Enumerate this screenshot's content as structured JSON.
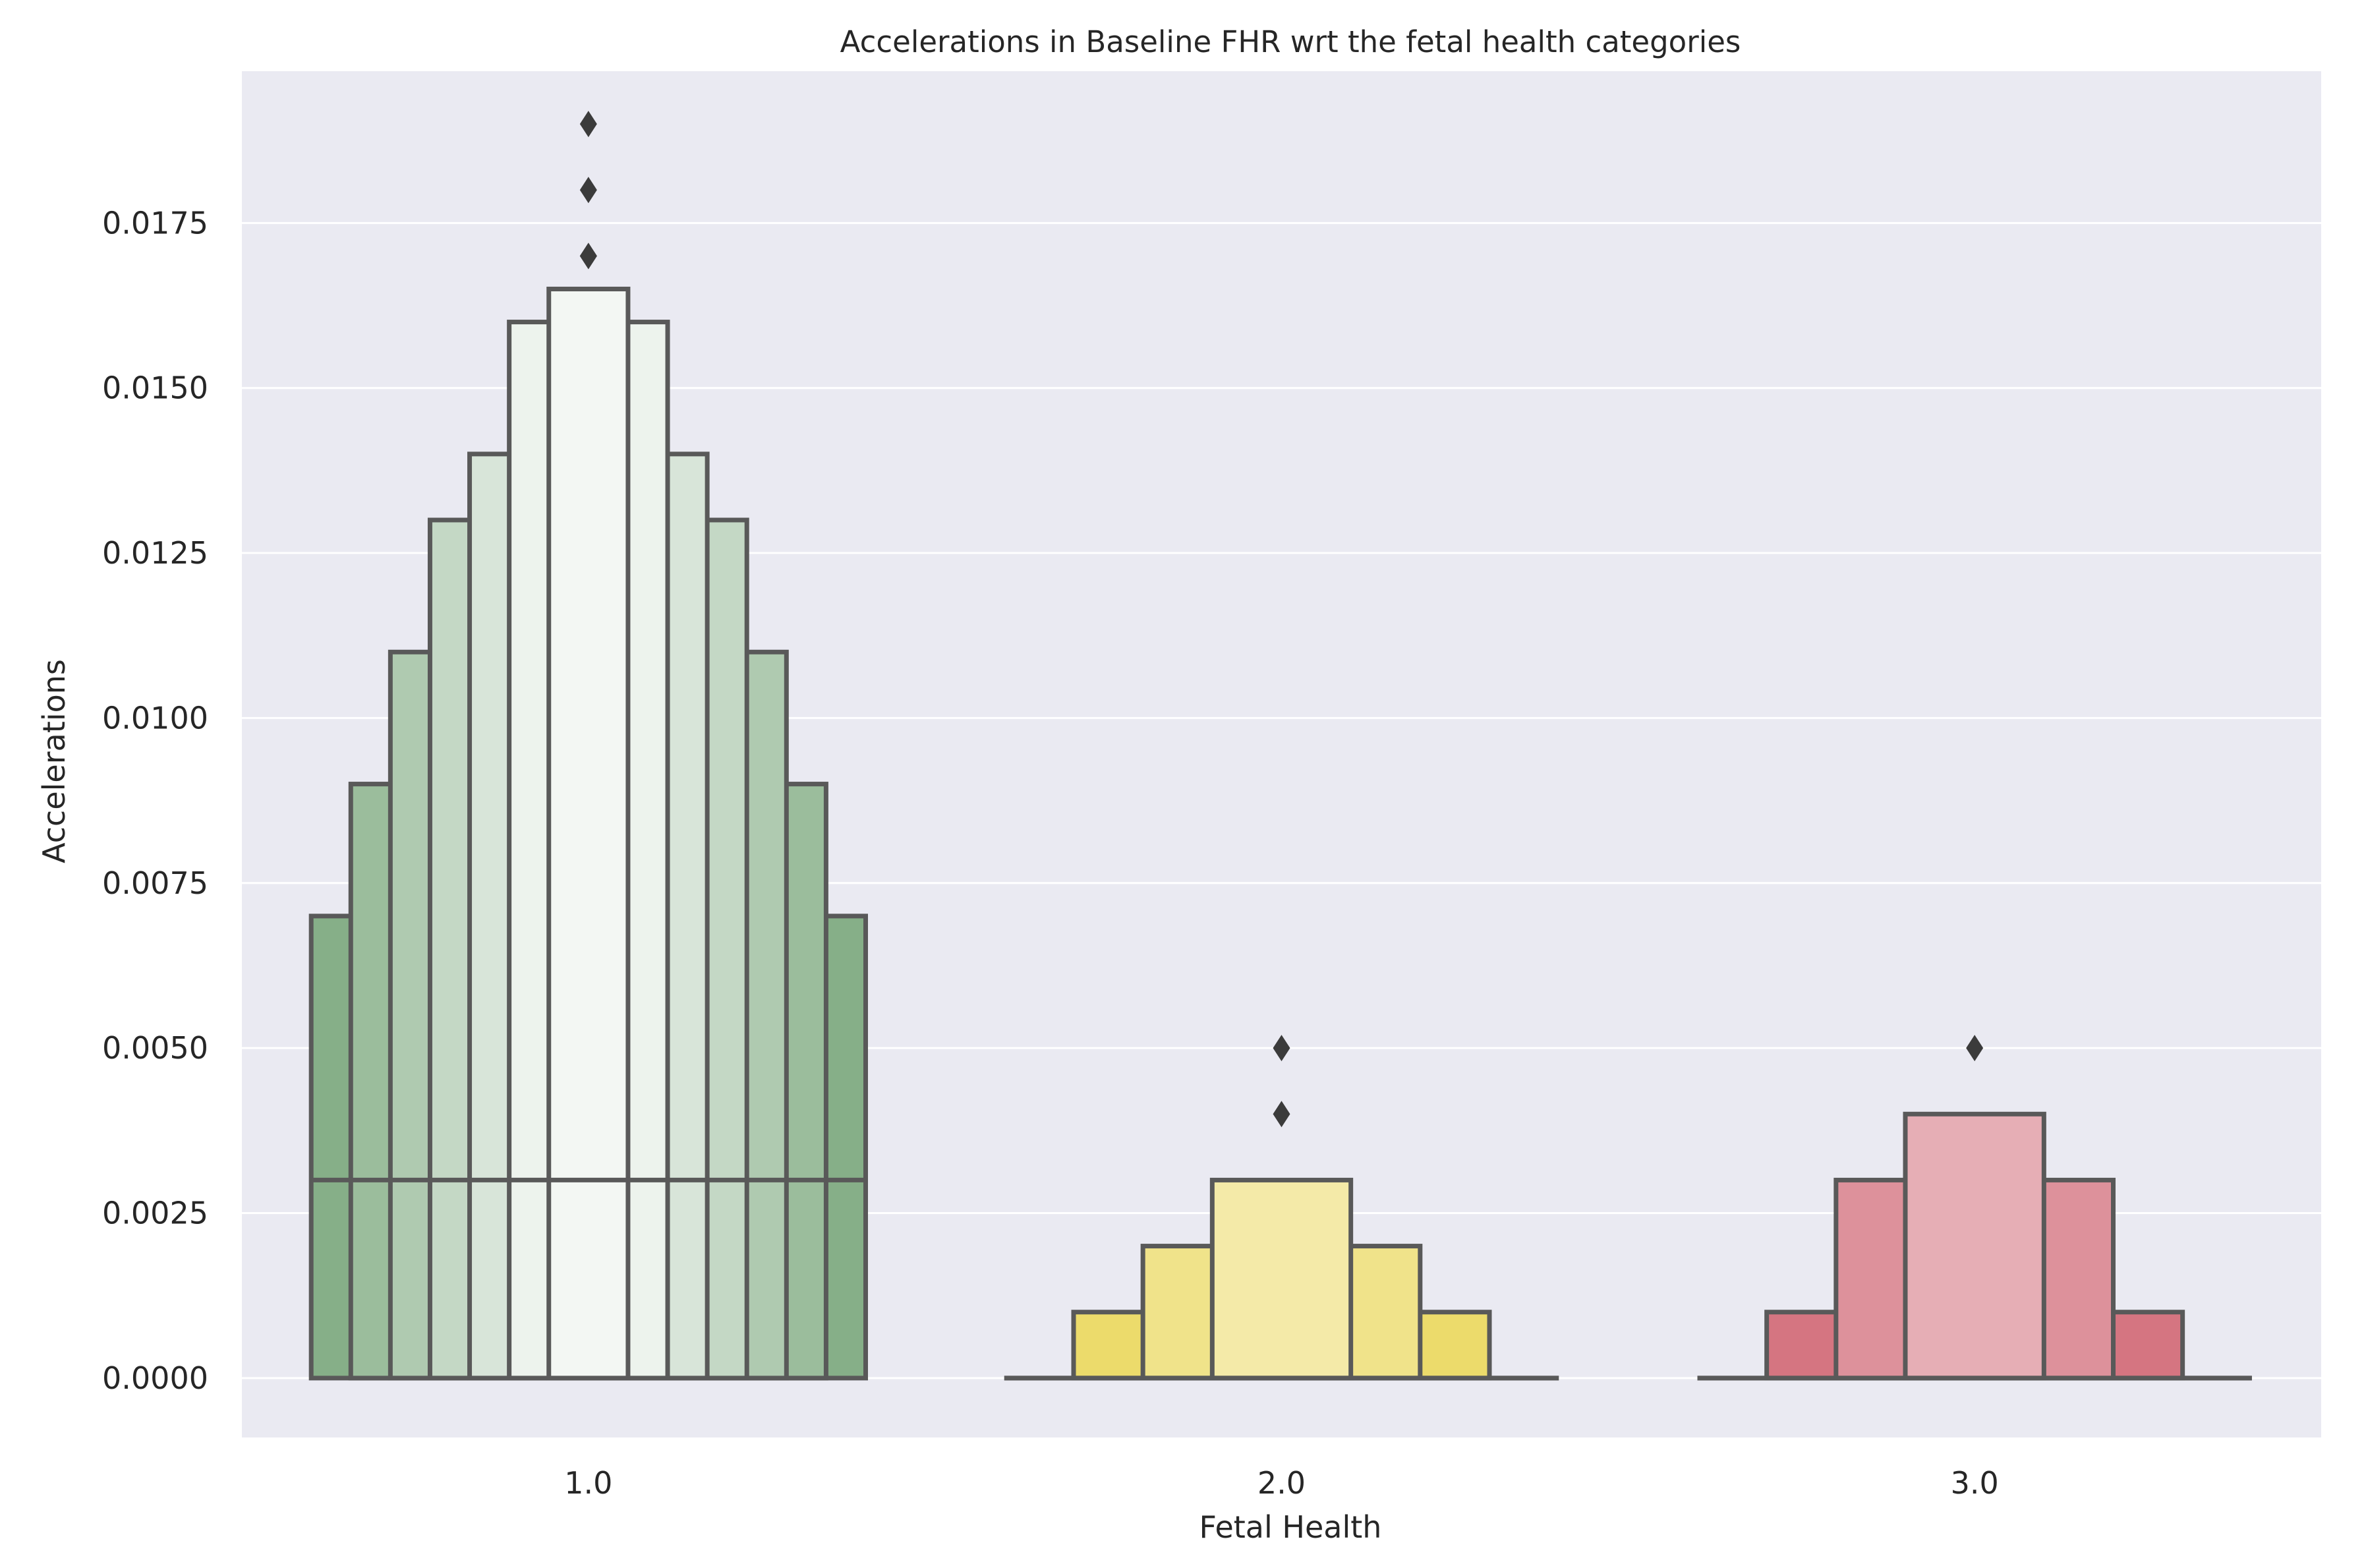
{
  "chart_data": {
    "type": "boxen",
    "title": "Accelerations in Baseline FHR wrt the fetal health categories",
    "xlabel": "Fetal Health",
    "ylabel": "Accelerations",
    "ylim": [
      -0.0009,
      0.0198
    ],
    "grid": true,
    "categories": [
      "1.0",
      "2.0",
      "3.0"
    ],
    "y_ticks": [
      "0.0000",
      "0.0025",
      "0.0050",
      "0.0075",
      "0.0100",
      "0.0125",
      "0.0150",
      "0.0175"
    ],
    "y_tick_values": [
      0,
      0.0025,
      0.005,
      0.0075,
      0.01,
      0.0125,
      0.015,
      0.0175
    ],
    "series": [
      {
        "category": "1.0",
        "color": "#86af88",
        "median": 0.003,
        "levels": [
          {
            "low": 0.0,
            "high": 0.007
          },
          {
            "low": 0.0,
            "high": 0.009
          },
          {
            "low": 0.0,
            "high": 0.011
          },
          {
            "low": 0.0,
            "high": 0.013
          },
          {
            "low": 0.0,
            "high": 0.014
          },
          {
            "low": 0.0,
            "high": 0.016
          },
          {
            "low": 0.0,
            "high": 0.0165
          }
        ],
        "outliers": [
          0.017,
          0.017,
          0.018,
          0.019
        ]
      },
      {
        "category": "2.0",
        "color": "#e8d44d",
        "median": 0.0,
        "levels": [
          {
            "low": 0.0,
            "high": 0.0
          },
          {
            "low": 0.0,
            "high": 0.001
          },
          {
            "low": 0.0,
            "high": 0.002
          },
          {
            "low": 0.0,
            "high": 0.003
          }
        ],
        "outliers": [
          0.004,
          0.005
        ]
      },
      {
        "category": "3.0",
        "color": "#cc5967",
        "median": 0.0,
        "levels": [
          {
            "low": 0.0,
            "high": 0.0
          },
          {
            "low": 0.0,
            "high": 0.001
          },
          {
            "low": 0.0,
            "high": 0.003
          },
          {
            "low": 0.0,
            "high": 0.004
          }
        ],
        "outliers": [
          0.005
        ]
      }
    ],
    "plot_background": "#eaeaf2",
    "grid_color": "#ffffff",
    "edge_color": "#595959"
  }
}
